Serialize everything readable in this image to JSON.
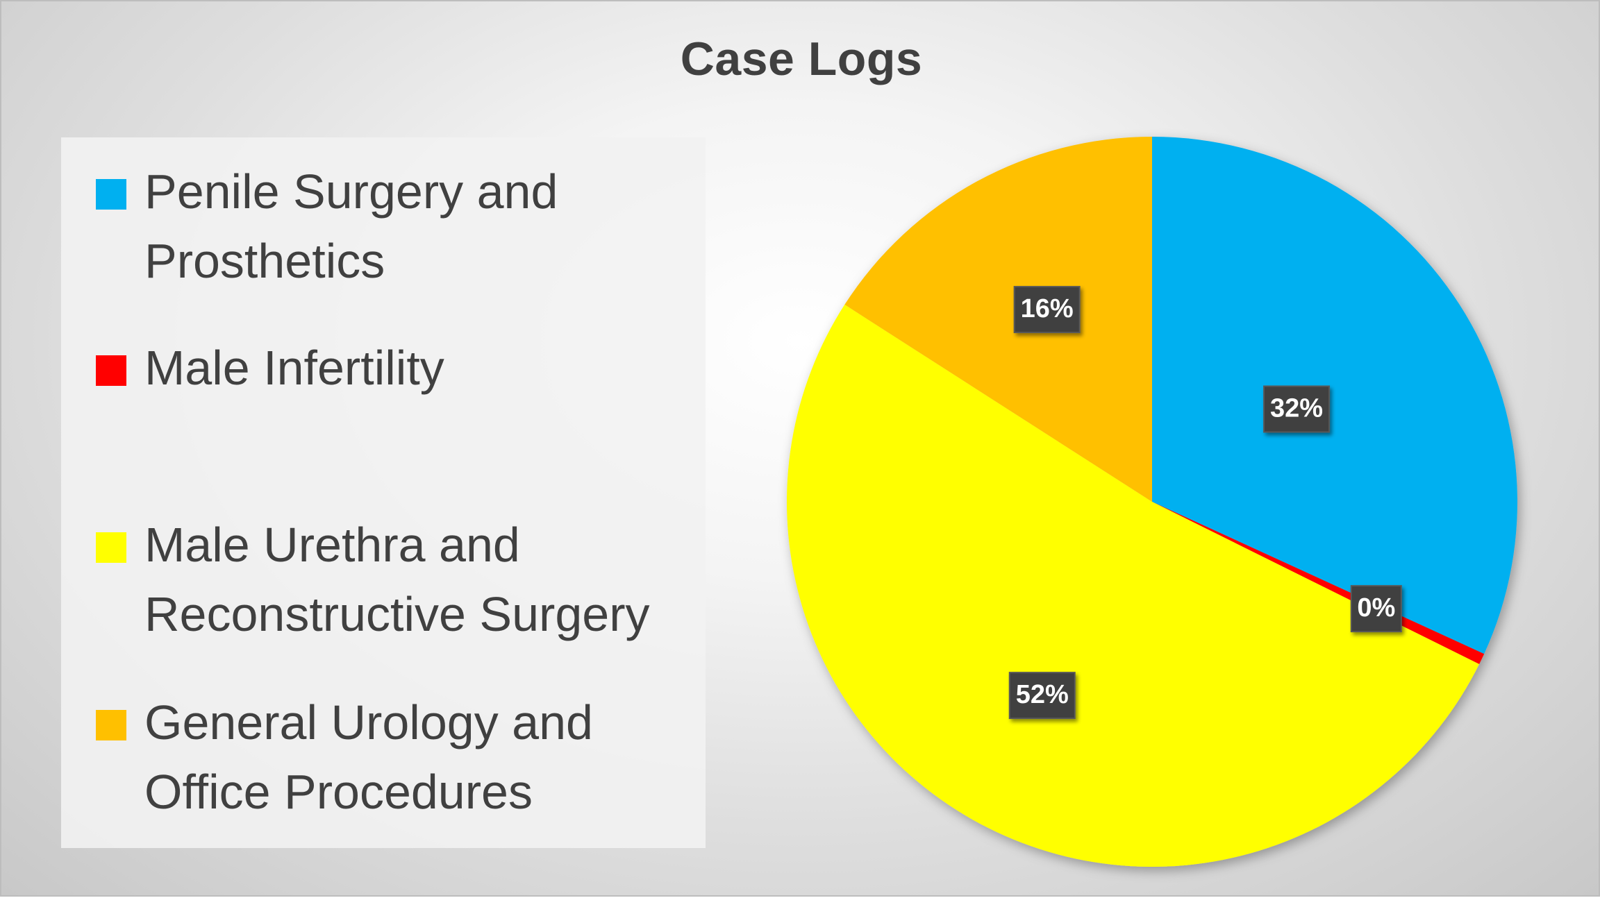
{
  "chart_data": {
    "type": "pie",
    "title": "Case Logs",
    "legend_position": "left",
    "categories": [
      "Penile Surgery and Prosthetics",
      "Male Infertility",
      "Male Urethra and Reconstructive Surgery",
      "General Urology and Office Procedures"
    ],
    "values": [
      32,
      0.5,
      52,
      16
    ],
    "data_labels": [
      "32%",
      "0%",
      "52%",
      "16%"
    ],
    "colors": [
      "#00B0F0",
      "#FF0000",
      "#FFFF00",
      "#FFC000"
    ]
  },
  "legend": {
    "items": [
      {
        "label": "Penile Surgery and\nProsthetics",
        "color": "#00B0F0"
      },
      {
        "label": "Male Infertility",
        "color": "#FF0000"
      },
      {
        "label": "Male Urethra and\nReconstructive Surgery",
        "color": "#FFFF00"
      },
      {
        "label": "General Urology and\nOffice Procedures",
        "color": "#FFC000"
      }
    ]
  }
}
